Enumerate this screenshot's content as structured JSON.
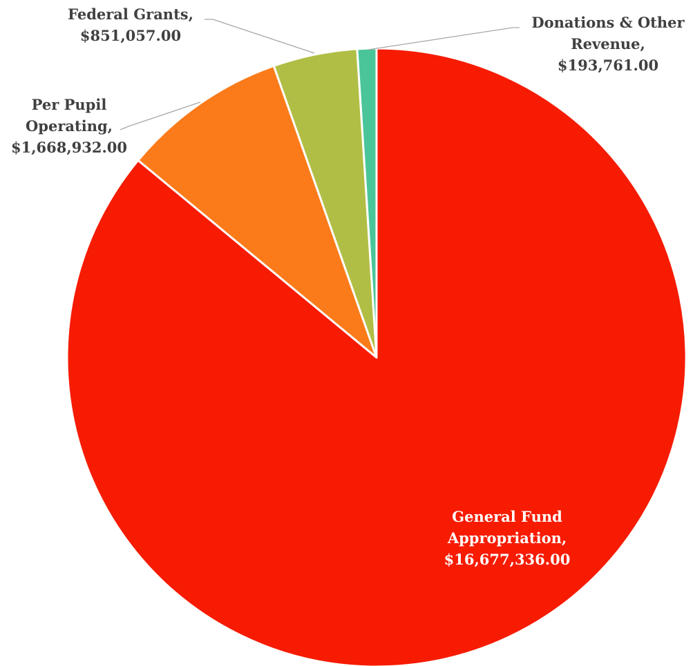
{
  "chart_data": {
    "type": "pie",
    "start_angle_deg": 0,
    "direction": "clockwise",
    "slices": [
      {
        "name": "General Fund Appropriation",
        "value": 16677336.0,
        "color": "#f71b02"
      },
      {
        "name": "Per Pupil Operating",
        "value": 1668932.0,
        "color": "#fb7b1a"
      },
      {
        "name": "Federal Grants",
        "value": 851057.0,
        "color": "#b1be45"
      },
      {
        "name": "Donations & Other Revenue",
        "value": 193761.0,
        "color": "#4ac59a"
      }
    ],
    "labels": [
      {
        "lines": [
          "General Fund",
          "Appropriation,",
          "$16,677,336.00"
        ],
        "placement": "inside",
        "text_color": "#ffffff"
      },
      {
        "lines": [
          "Per Pupil",
          "Operating,",
          "$1,668,932.00"
        ],
        "placement": "outside-left",
        "text_color": "#404040"
      },
      {
        "lines": [
          "Federal Grants,",
          "$851,057.00"
        ],
        "placement": "outside-top",
        "text_color": "#404040"
      },
      {
        "lines": [
          "Donations & Other",
          "Revenue,",
          "$193,761.00"
        ],
        "placement": "outside-top-right",
        "text_color": "#404040"
      }
    ],
    "leader_line_color": "#a6a6a6",
    "slice_border_color": "#ffffff"
  }
}
